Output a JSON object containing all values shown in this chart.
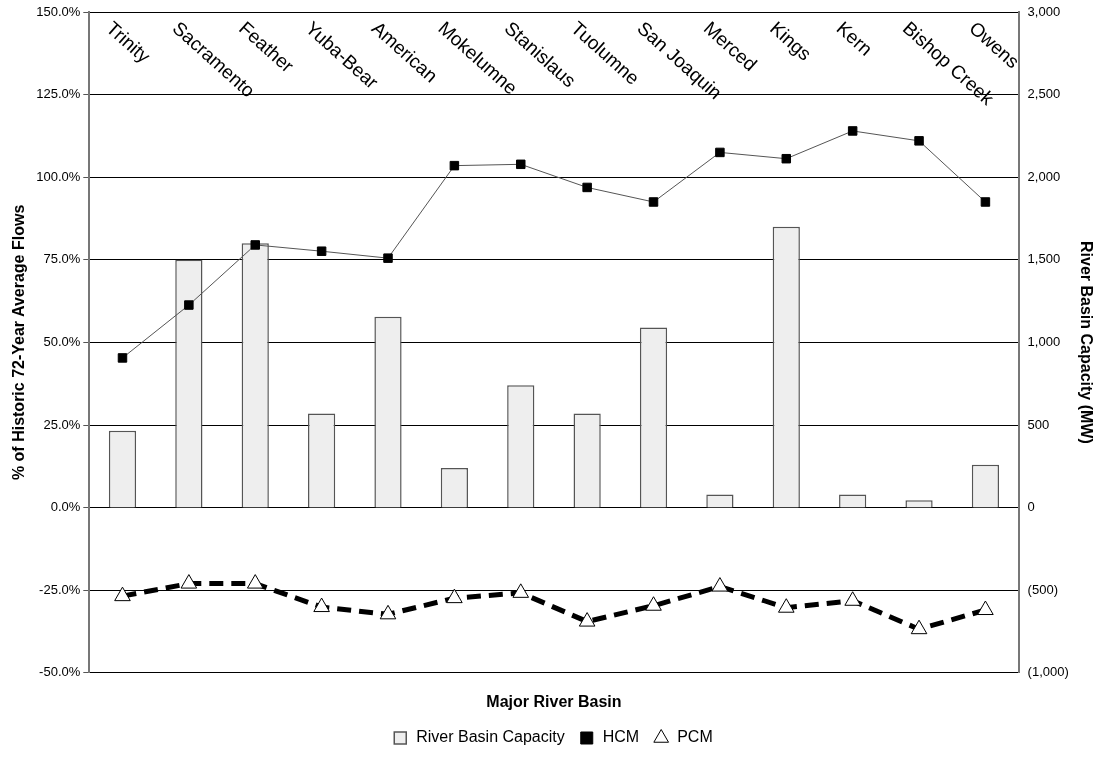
{
  "chart_data": {
    "type": "bar",
    "xlabel": "Major River Basin",
    "ylabel": "% of Historic 72-Year Average Flows",
    "y2label": "River Basin Capacity (MW)",
    "categories": [
      "Trinity",
      "Sacramento",
      "Feather",
      "Yuba-Bear",
      "American",
      "Mokelumne",
      "Stanislaus",
      "Tuolumne",
      "San Joaquin",
      "Merced",
      "Kings",
      "Kern",
      "Bishop Creek",
      "Owens"
    ],
    "series": [
      {
        "name": "River Basin Capacity",
        "type": "bar",
        "axis": "y2",
        "color": "#eeeeee",
        "values": [
          465,
          1500,
          1600,
          570,
          1155,
          240,
          740,
          570,
          1090,
          80,
          1700,
          80,
          45,
          260
        ]
      },
      {
        "name": "HCM",
        "type": "line",
        "color": "#000000",
        "marker": "square",
        "line_style": "solid",
        "values": [
          45.3,
          61.3,
          79.5,
          77.6,
          75.5,
          103.5,
          103.9,
          96.9,
          92.5,
          107.5,
          105.6,
          114.0,
          111.0,
          92.5
        ]
      },
      {
        "name": "PCM",
        "type": "line",
        "color": "#000000",
        "marker": "triangle",
        "line_style": "dashed",
        "values": [
          -26.8,
          -23.0,
          -23.0,
          -30.1,
          -32.3,
          -27.4,
          -25.8,
          -34.5,
          -29.7,
          -23.9,
          -30.3,
          -28.2,
          -36.8,
          -31.0
        ]
      }
    ],
    "ylim": [
      -50,
      150
    ],
    "yticks": [
      {
        "value": -50,
        "label": "-50.0%"
      },
      {
        "value": -25,
        "label": "-25.0%"
      },
      {
        "value": 0,
        "label": "0.0%"
      },
      {
        "value": 25,
        "label": "25.0%"
      },
      {
        "value": 50,
        "label": "50.0%"
      },
      {
        "value": 75,
        "label": "75.0%"
      },
      {
        "value": 100,
        "label": "100.0%"
      },
      {
        "value": 125,
        "label": "125.0%"
      },
      {
        "value": 150,
        "label": "150.0%"
      }
    ],
    "y2lim": [
      -1000,
      3000
    ],
    "y2ticks": [
      {
        "value": -1000,
        "label": "(1,000)"
      },
      {
        "value": -500,
        "label": "(500)"
      },
      0,
      500,
      {
        "value": 1000,
        "label": "1,000"
      },
      {
        "value": 1500,
        "label": "1,500"
      },
      {
        "value": 2000,
        "label": "2,000"
      },
      {
        "value": 2500,
        "label": "2,500"
      },
      {
        "value": 3000,
        "label": "3,000"
      }
    ],
    "grid": "y",
    "legend": "bottom"
  }
}
